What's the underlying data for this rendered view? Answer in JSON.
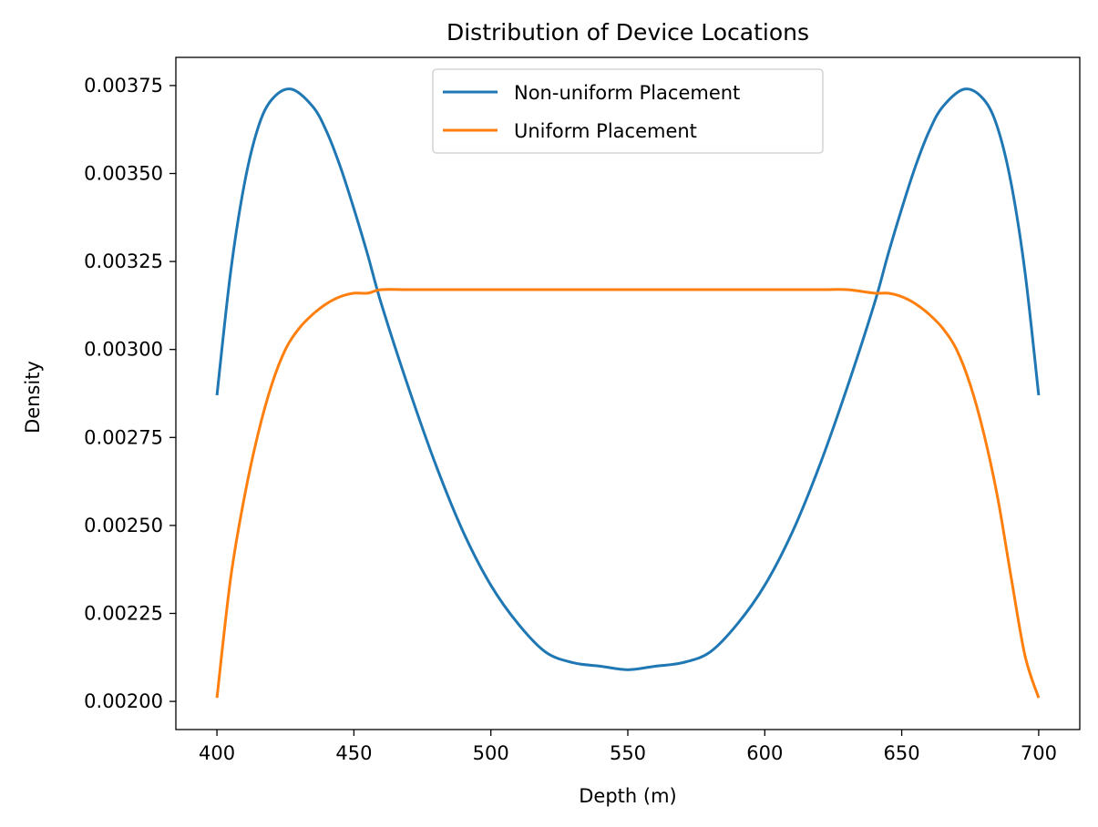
{
  "chart_data": {
    "type": "line",
    "title": "Distribution of Device Locations",
    "xlabel": "Depth (m)",
    "ylabel": "Density",
    "xlim": [
      385,
      715
    ],
    "ylim": [
      0.00192,
      0.00383
    ],
    "xticks": [
      400,
      450,
      500,
      550,
      600,
      650,
      700
    ],
    "xtick_labels": [
      "400",
      "450",
      "500",
      "550",
      "600",
      "650",
      "700"
    ],
    "yticks": [
      0.002,
      0.00225,
      0.0025,
      0.00275,
      0.003,
      0.00325,
      0.0035,
      0.00375
    ],
    "ytick_labels": [
      "0.00200",
      "0.00225",
      "0.00250",
      "0.00275",
      "0.00300",
      "0.00325",
      "0.00350",
      "0.00375"
    ],
    "grid": false,
    "legend_position": "top-center",
    "series": [
      {
        "name": "Non-uniform Placement",
        "color": "#1f77b4",
        "x": [
          400,
          405,
          410,
          415,
          420,
          427,
          435,
          440,
          445,
          450,
          455,
          460,
          470,
          480,
          490,
          500,
          510,
          520,
          530,
          540,
          550,
          560,
          570,
          580,
          590,
          600,
          610,
          620,
          630,
          640,
          645,
          650,
          655,
          660,
          665,
          673,
          680,
          685,
          690,
          695,
          700
        ],
        "y": [
          0.00287,
          0.00322,
          0.00347,
          0.00363,
          0.00371,
          0.00374,
          0.00369,
          0.00362,
          0.00352,
          0.0034,
          0.00327,
          0.00313,
          0.00289,
          0.00267,
          0.00248,
          0.00233,
          0.00222,
          0.00214,
          0.00211,
          0.0021,
          0.00209,
          0.0021,
          0.00211,
          0.00214,
          0.00222,
          0.00233,
          0.00248,
          0.00267,
          0.00289,
          0.00313,
          0.00327,
          0.0034,
          0.00352,
          0.00362,
          0.00369,
          0.00374,
          0.00371,
          0.00363,
          0.00347,
          0.00322,
          0.00287
        ]
      },
      {
        "name": "Uniform Placement",
        "color": "#ff7f0e",
        "x": [
          400,
          405,
          410,
          415,
          420,
          425,
          430,
          435,
          440,
          445,
          450,
          455,
          460,
          470,
          480,
          500,
          550,
          600,
          620,
          630,
          640,
          645,
          650,
          655,
          660,
          665,
          670,
          675,
          680,
          685,
          690,
          695,
          700
        ],
        "y": [
          0.00201,
          0.00235,
          0.00258,
          0.00276,
          0.0029,
          0.003,
          0.00306,
          0.0031,
          0.00313,
          0.00315,
          0.00316,
          0.00316,
          0.00317,
          0.00317,
          0.00317,
          0.00317,
          0.00317,
          0.00317,
          0.00317,
          0.00317,
          0.00316,
          0.00316,
          0.00315,
          0.00313,
          0.0031,
          0.00306,
          0.003,
          0.0029,
          0.00276,
          0.00258,
          0.00235,
          0.00213,
          0.00201
        ]
      }
    ]
  }
}
